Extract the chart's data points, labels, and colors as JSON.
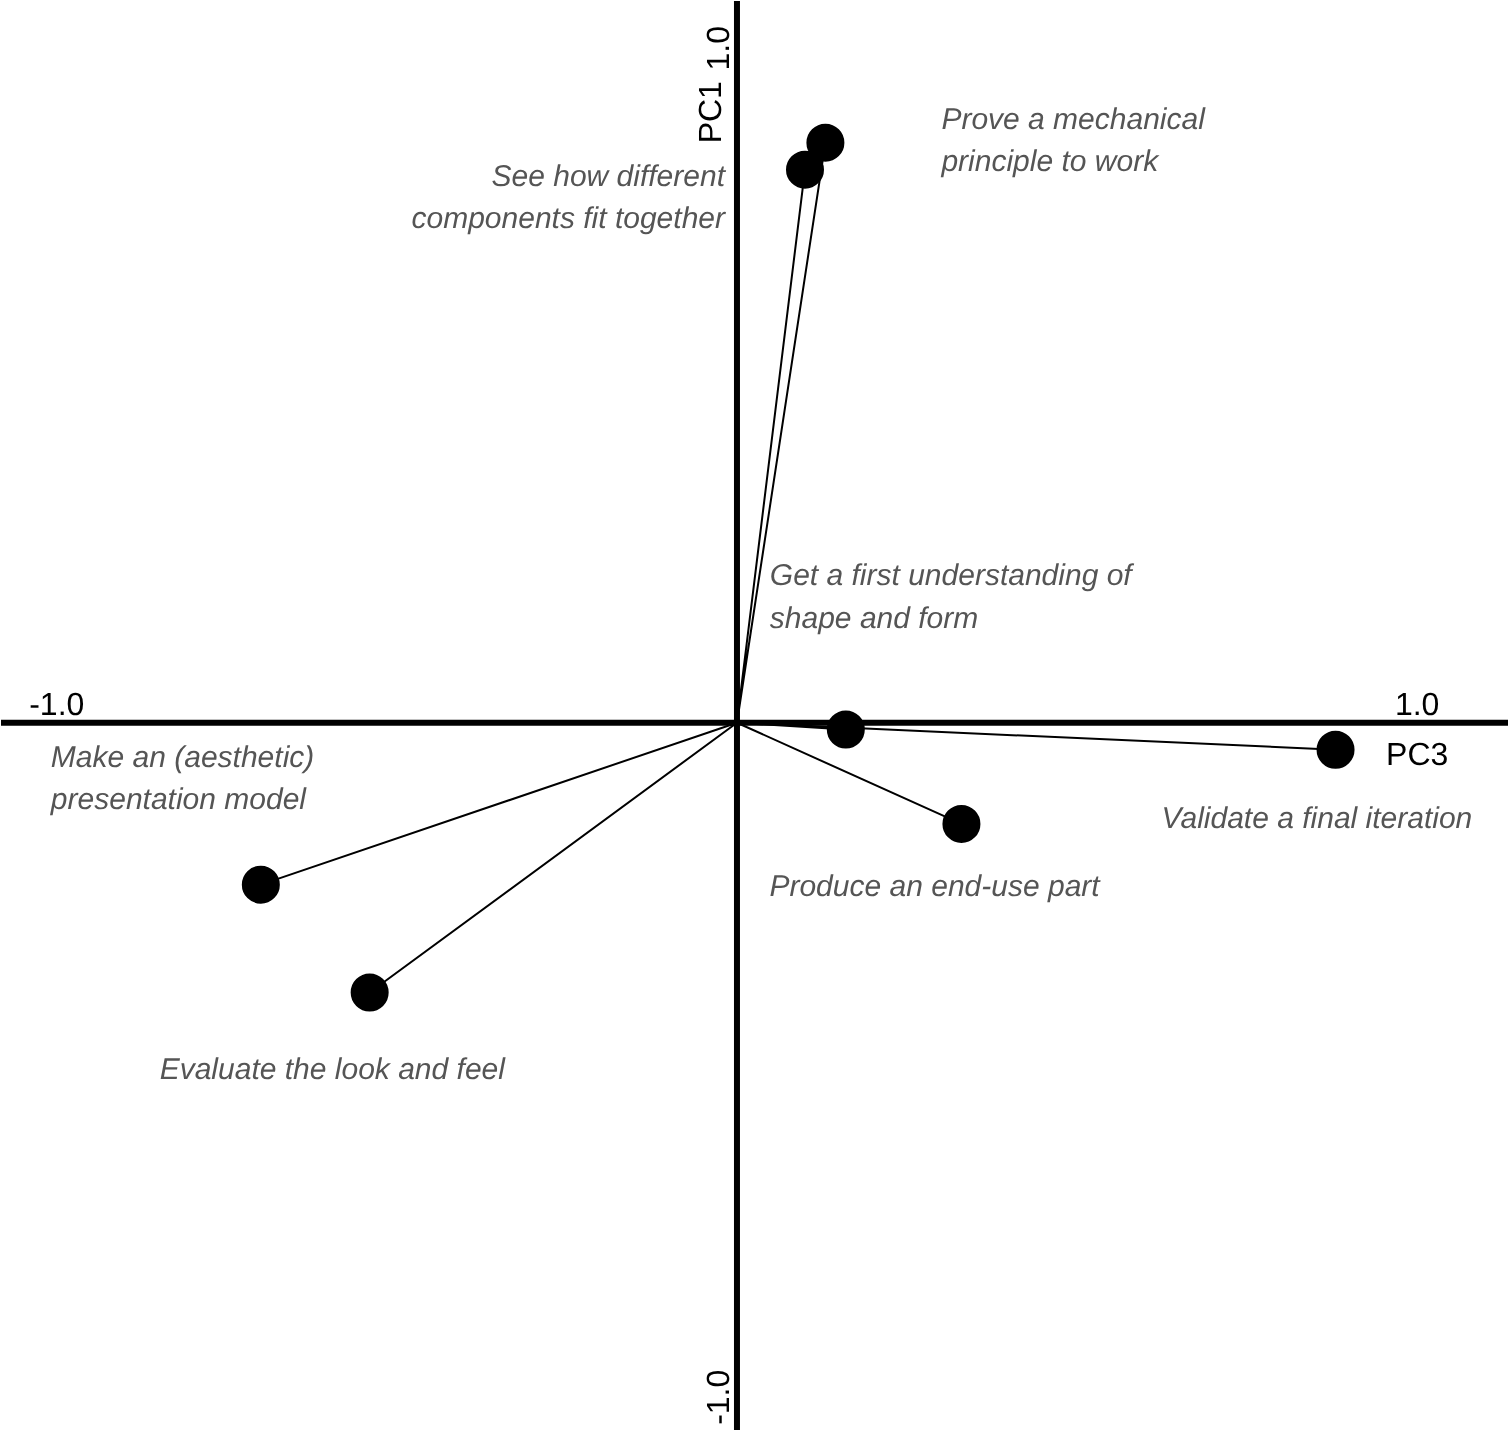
{
  "chart_data": {
    "type": "scatter",
    "xlabel": "PC3",
    "ylabel": "PC1",
    "xlim": [
      -1.082,
      1.135
    ],
    "ylim": [
      -1.05,
      1.07
    ],
    "xticks": [
      {
        "value": -1.0,
        "label": "-1.0"
      },
      {
        "value": 1.0,
        "label": "1.0"
      }
    ],
    "yticks": [
      {
        "value": -1.0,
        "label": "-1.0"
      },
      {
        "value": 1.0,
        "label": "1.0"
      }
    ],
    "grid": false,
    "marker": "circle",
    "series": [
      {
        "color": "#000000",
        "x": [
          0.13,
          0.1,
          0.16,
          0.88,
          0.33,
          -0.7,
          -0.54
        ],
        "values": [
          0.86,
          0.82,
          -0.01,
          -0.04,
          -0.15,
          -0.24,
          -0.4
        ]
      },
      {
        "type": "line",
        "color": "#000000",
        "marker": "none",
        "x": [
          0,
          0.13,
          null,
          0,
          0.1,
          null,
          0,
          0.16,
          null,
          0,
          0.88,
          null,
          0,
          0.33,
          null,
          0,
          -0.7,
          null,
          0,
          -0.54
        ],
        "values": [
          0,
          0.86,
          null,
          0,
          0.82,
          null,
          0,
          -0.01,
          null,
          0,
          -0.04,
          null,
          0,
          -0.15,
          null,
          0,
          -0.24,
          null,
          0,
          -0.4
        ]
      }
    ],
    "annotations": [
      "Prove a mechanical\nprinciple to work",
      "See how different\ncomponents fit together",
      "Get a first understanding of\nshape and form",
      "Validate a final iteration",
      "Produce an end-use part",
      "Make an (aesthetic)\npresentation model",
      "Evaluate the look and feel"
    ]
  }
}
